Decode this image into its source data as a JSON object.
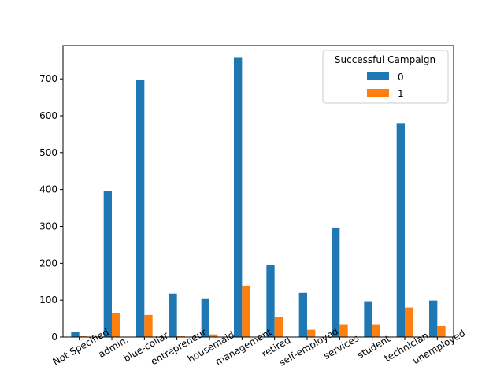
{
  "chart_data": {
    "type": "bar",
    "title": "",
    "xlabel": "",
    "ylabel": "",
    "categories": [
      "Not Specified",
      "admin.",
      "blue-collar",
      "entrepreneur",
      "housemaid",
      "management",
      "retired",
      "self-employed",
      "services",
      "student",
      "technician",
      "unemployed"
    ],
    "series": [
      {
        "name": "0",
        "values": [
          15,
          395,
          698,
          118,
          103,
          757,
          196,
          120,
          297,
          97,
          580,
          99
        ],
        "color": "#1f77b4"
      },
      {
        "name": "1",
        "values": [
          2,
          65,
          60,
          2,
          7,
          139,
          55,
          20,
          33,
          33,
          80,
          30
        ],
        "color": "#ff7f0e"
      }
    ],
    "ylim": [
      0,
      790
    ],
    "yticks": [
      0,
      100,
      200,
      300,
      400,
      500,
      600,
      700
    ],
    "grid": false,
    "legend": {
      "title": "Successful Campaign",
      "placement": "top-right"
    }
  }
}
